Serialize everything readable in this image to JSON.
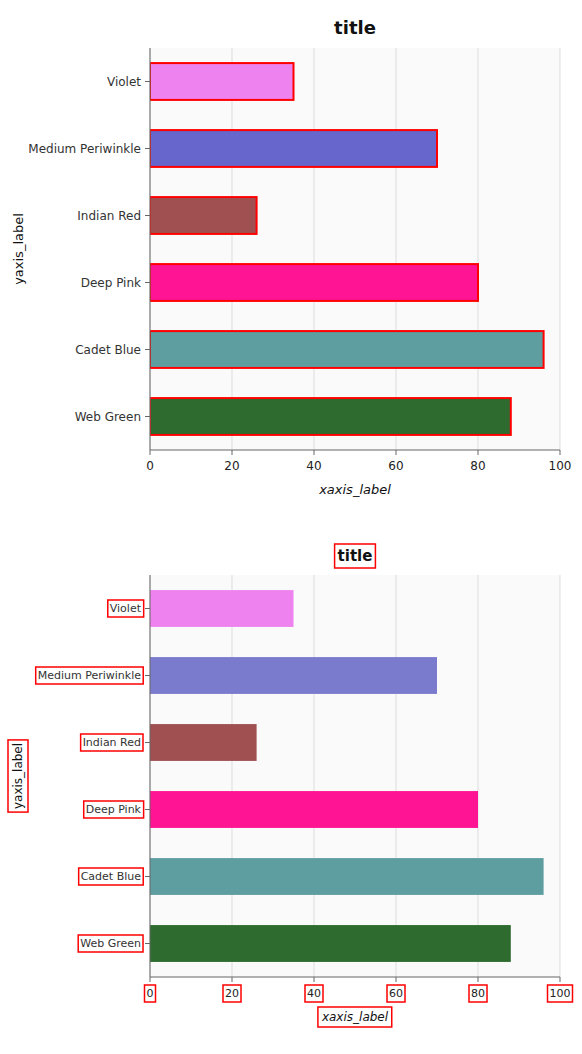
{
  "chart_data": [
    {
      "type": "bar",
      "orientation": "horizontal",
      "title": "title",
      "xlabel": "xaxis_label",
      "ylabel": "yaxis_label",
      "categories": [
        "Web Green",
        "Cadet Blue",
        "Deep Pink",
        "Indian Red",
        "Medium Periwinkle",
        "Violet"
      ],
      "values": [
        88,
        96,
        80,
        26,
        70,
        35
      ],
      "colors": [
        "#2E6B2E",
        "#5F9EA0",
        "#FF1493",
        "#A05050",
        "#6666CC",
        "#EE82EE"
      ],
      "xlim": [
        0,
        100
      ],
      "xticks": [
        0,
        20,
        40,
        60,
        80,
        100
      ],
      "grid": true
    },
    {
      "type": "bar",
      "orientation": "horizontal",
      "title": "title",
      "xlabel": "xaxis_label",
      "ylabel": "yaxis_label",
      "categories": [
        "Web Green",
        "Cadet Blue",
        "Deep Pink",
        "Indian Red",
        "Medium Periwinkle",
        "Violet"
      ],
      "values": [
        88,
        96,
        80,
        26,
        70,
        35
      ],
      "colors": [
        "#2E6B2E",
        "#5F9EA0",
        "#FF1493",
        "#A05050",
        "#7B7BCE",
        "#EE82EE"
      ],
      "xlim": [
        0,
        100
      ],
      "xticks": [
        0,
        20,
        40,
        60,
        80,
        100
      ],
      "grid": true
    }
  ]
}
